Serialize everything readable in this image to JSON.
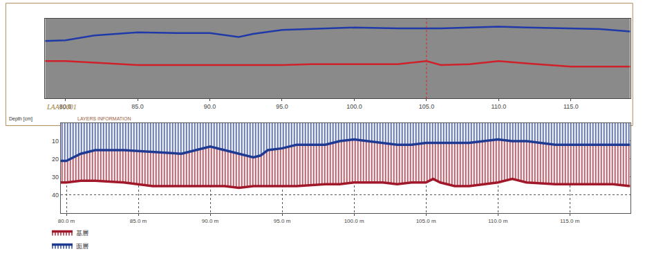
{
  "chart_data": [
    {
      "type": "line",
      "title": "LAA10001",
      "tick_labels": "x",
      "cursor_x": 105,
      "xlim": [
        78.6,
        119.1
      ],
      "xticks": [
        {
          "value": 80,
          "label": "80.0"
        },
        {
          "value": 85,
          "label": "85.0"
        },
        {
          "value": 90,
          "label": "90.0"
        },
        {
          "value": 95,
          "label": "95.0"
        },
        {
          "value": 100,
          "label": "100.0"
        },
        {
          "value": 105,
          "label": "105.0"
        },
        {
          "value": 110,
          "label": "110.0"
        },
        {
          "value": 115,
          "label": "115.0"
        }
      ],
      "ylim": [
        0,
        100
      ],
      "yticks": [],
      "x": [
        78.6,
        80,
        82,
        85,
        88,
        90,
        92,
        93,
        95,
        97,
        100,
        103,
        105,
        106,
        108,
        110,
        112,
        115,
        117,
        119.1
      ],
      "series": [
        {
          "name": null,
          "color": "#1f3aa8",
          "values": [
            28,
            27,
            21,
            17,
            18,
            18,
            23,
            19,
            14,
            13,
            11,
            12,
            12,
            12,
            11,
            10,
            11,
            12,
            13,
            16
          ]
        },
        {
          "name": null,
          "color": "#d0202a",
          "values": [
            53,
            53,
            55,
            58,
            58,
            58,
            58,
            58,
            58,
            57,
            57,
            57,
            53,
            58,
            57,
            53,
            56,
            60,
            60,
            60
          ]
        }
      ]
    },
    {
      "type": "area",
      "title": "LAYERS INFORMATION",
      "ylabel": "Depth [cm]",
      "grid": true,
      "legend": "bottom left",
      "xlim": [
        79.6,
        119.2
      ],
      "xticks": [
        {
          "value": 80,
          "label": "80.0 m"
        },
        {
          "value": 85,
          "label": "85.0 m"
        },
        {
          "value": 90,
          "label": "90.0 m"
        },
        {
          "value": 95,
          "label": "95.0 m"
        },
        {
          "value": 100,
          "label": "100.0 m"
        },
        {
          "value": 105,
          "label": "105.0 m"
        },
        {
          "value": 110,
          "label": "110.0 m"
        },
        {
          "value": 115,
          "label": "115.0 m"
        }
      ],
      "ylim": [
        0,
        50
      ],
      "yticks": [
        10,
        20,
        30,
        40
      ],
      "x": [
        79.6,
        80,
        81,
        82,
        84,
        86,
        88,
        89,
        90,
        91,
        92,
        93,
        93.5,
        94,
        95,
        96,
        98,
        99,
        100,
        101,
        102,
        103,
        104,
        105,
        105.5,
        106,
        107,
        108,
        110,
        111,
        112,
        114,
        116,
        118,
        119.2
      ],
      "series": [
        {
          "name": "面層",
          "color": "#1f3a93",
          "values": [
            21,
            21,
            17,
            15,
            15,
            16,
            17,
            15,
            13,
            15,
            17,
            19,
            18,
            15,
            14,
            12,
            12,
            10,
            9,
            10,
            11,
            12,
            12,
            11,
            11,
            11,
            11,
            11,
            9,
            10,
            10,
            12,
            12,
            12,
            12
          ]
        },
        {
          "name": "基層",
          "color": "#a0182a",
          "values": [
            33,
            33,
            32,
            32,
            33,
            35,
            35,
            35,
            35,
            35,
            36,
            35,
            35,
            35,
            35,
            35,
            34,
            34,
            33,
            33,
            33,
            34,
            33,
            33,
            31,
            33,
            35,
            35,
            33,
            31,
            33,
            34,
            34,
            34,
            35
          ]
        }
      ]
    }
  ]
}
